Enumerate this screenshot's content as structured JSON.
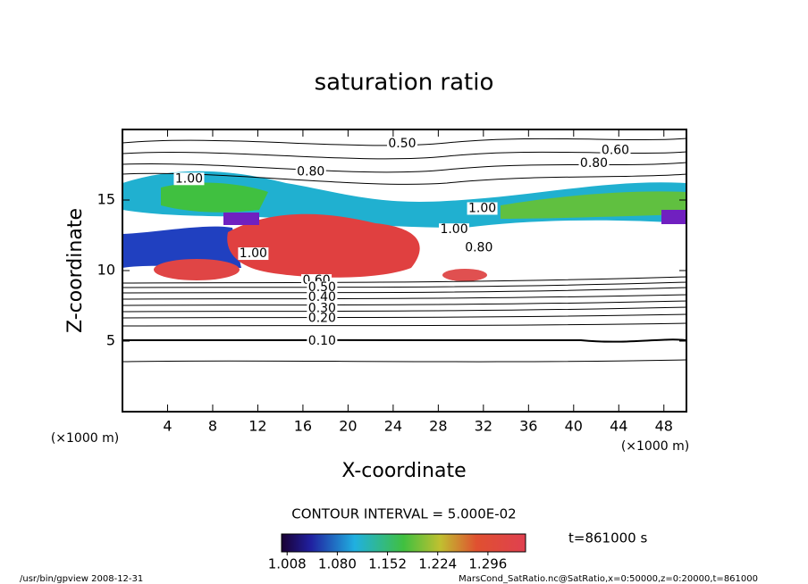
{
  "chart_data": {
    "type": "contour",
    "title": "saturation ratio",
    "x_label": "X-coordinate",
    "y_label": "Z-coordinate",
    "x_unit": "(×1000 m)",
    "y_unit": "(×1000 m)",
    "xlim": [
      0,
      50
    ],
    "ylim": [
      0,
      20
    ],
    "xticks": [
      4,
      8,
      12,
      16,
      20,
      24,
      28,
      32,
      36,
      40,
      44,
      48
    ],
    "yticks": [
      5,
      10,
      15
    ],
    "contour_labels": [
      {
        "label": "0.50",
        "x": 24.8,
        "z": 19.0
      },
      {
        "label": "0.60",
        "x": 43.7,
        "z": 18.5
      },
      {
        "label": "0.80",
        "x": 41.8,
        "z": 17.6
      },
      {
        "label": "1.00",
        "x": 5.9,
        "z": 16.5
      },
      {
        "label": "0.80",
        "x": 16.7,
        "z": 17.0
      },
      {
        "label": "1.00",
        "x": 31.9,
        "z": 14.4
      },
      {
        "label": "1.00",
        "x": 29.4,
        "z": 12.9
      },
      {
        "label": "0.80",
        "x": 31.6,
        "z": 11.6
      },
      {
        "label": "1.00",
        "x": 11.6,
        "z": 11.2
      },
      {
        "label": "0.60",
        "x": 17.2,
        "z": 9.3
      },
      {
        "label": "0.50",
        "x": 17.7,
        "z": 8.8
      },
      {
        "label": "0.40",
        "x": 17.7,
        "z": 8.1
      },
      {
        "label": "0.30",
        "x": 17.7,
        "z": 7.3
      },
      {
        "label": "0.20",
        "x": 17.7,
        "z": 6.6
      },
      {
        "label": "0.10",
        "x": 17.7,
        "z": 5.0
      }
    ],
    "contour_interval": "CONTOUR INTERVAL = 5.000E-02",
    "time_label": "t=861000 s",
    "clim": [
      1.0,
      1.35
    ],
    "cticks": [
      1.008,
      {
        "value": 1.08,
        "label": "1.080"
      },
      1.152,
      1.224,
      1.296
    ],
    "footer_left": "/usr/bin/gpview   2008-12-31",
    "footer_right": "MarsCond_SatRatio.nc@SatRatio,x=0:50000,z=0:20000,t=861000"
  }
}
